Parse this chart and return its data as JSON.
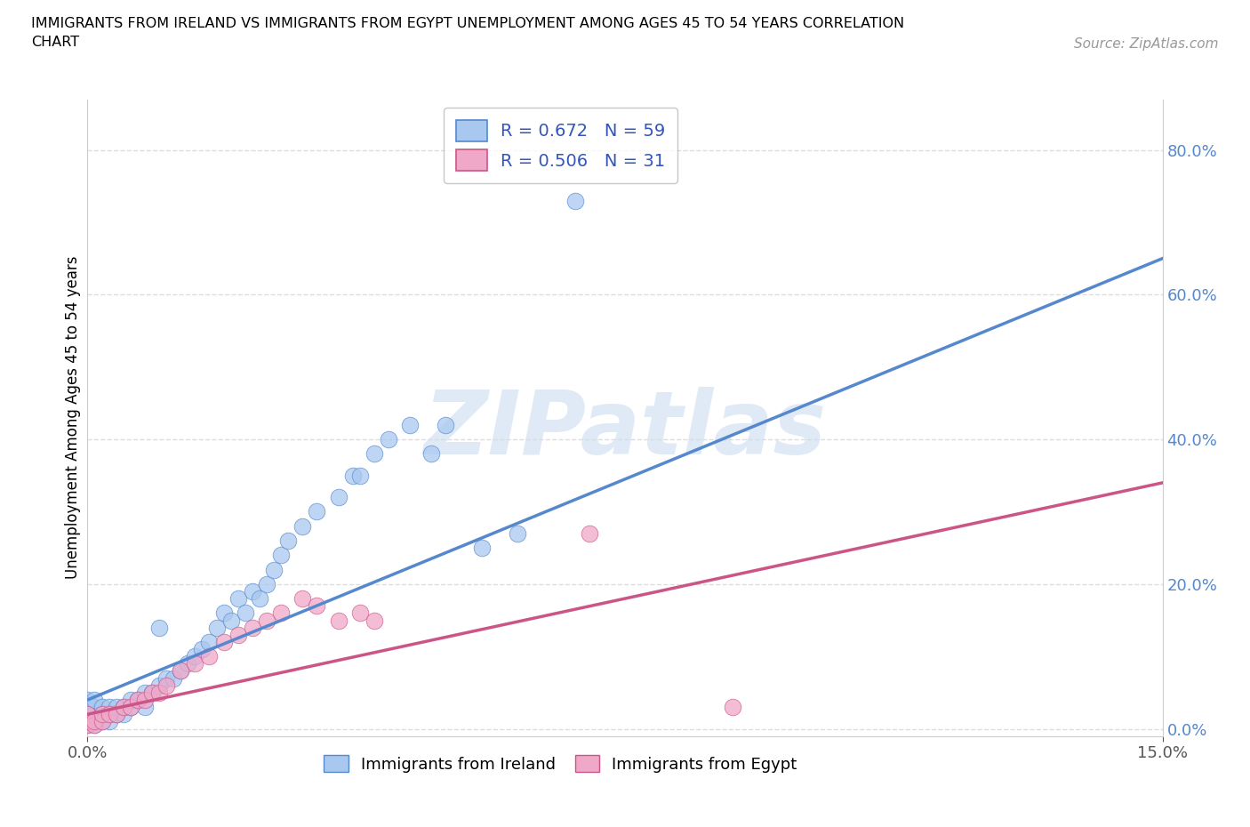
{
  "title_line1": "IMMIGRANTS FROM IRELAND VS IMMIGRANTS FROM EGYPT UNEMPLOYMENT AMONG AGES 45 TO 54 YEARS CORRELATION",
  "title_line2": "CHART",
  "source": "Source: ZipAtlas.com",
  "ylabel": "Unemployment Among Ages 45 to 54 years",
  "xlim": [
    0.0,
    0.15
  ],
  "ylim": [
    -0.01,
    0.87
  ],
  "ireland_R": 0.672,
  "ireland_N": 59,
  "egypt_R": 0.506,
  "egypt_N": 31,
  "ireland_color": "#a8c8f0",
  "egypt_color": "#f0a8c8",
  "ireland_line_color": "#5588cc",
  "egypt_line_color": "#cc5588",
  "legend_text_color": "#3355bb",
  "watermark_color": "#ccddf0",
  "background": "#ffffff",
  "grid_color": "#dddddd",
  "ytick_vals": [
    0.0,
    0.2,
    0.4,
    0.6,
    0.8
  ],
  "ytick_labels": [
    "0.0%",
    "20.0%",
    "40.0%",
    "60.0%",
    "80.0%"
  ],
  "xtick_vals": [
    0.0,
    0.15
  ],
  "xtick_labels": [
    "0.0%",
    "15.0%"
  ],
  "ireland_x": [
    0.0,
    0.0,
    0.0,
    0.0,
    0.0,
    0.001,
    0.001,
    0.001,
    0.001,
    0.001,
    0.002,
    0.002,
    0.002,
    0.003,
    0.003,
    0.003,
    0.004,
    0.004,
    0.005,
    0.005,
    0.006,
    0.006,
    0.007,
    0.008,
    0.008,
    0.009,
    0.01,
    0.01,
    0.011,
    0.012,
    0.013,
    0.014,
    0.015,
    0.016,
    0.017,
    0.018,
    0.019,
    0.02,
    0.021,
    0.022,
    0.023,
    0.024,
    0.025,
    0.026,
    0.027,
    0.028,
    0.03,
    0.032,
    0.035,
    0.037,
    0.038,
    0.04,
    0.042,
    0.045,
    0.048,
    0.05,
    0.055,
    0.06,
    0.068
  ],
  "ireland_y": [
    0.005,
    0.01,
    0.02,
    0.03,
    0.04,
    0.005,
    0.01,
    0.02,
    0.03,
    0.04,
    0.01,
    0.02,
    0.03,
    0.01,
    0.02,
    0.03,
    0.02,
    0.03,
    0.02,
    0.03,
    0.03,
    0.04,
    0.04,
    0.03,
    0.05,
    0.05,
    0.06,
    0.14,
    0.07,
    0.07,
    0.08,
    0.09,
    0.1,
    0.11,
    0.12,
    0.14,
    0.16,
    0.15,
    0.18,
    0.16,
    0.19,
    0.18,
    0.2,
    0.22,
    0.24,
    0.26,
    0.28,
    0.3,
    0.32,
    0.35,
    0.35,
    0.38,
    0.4,
    0.42,
    0.38,
    0.42,
    0.25,
    0.27,
    0.73
  ],
  "egypt_x": [
    0.0,
    0.0,
    0.0,
    0.001,
    0.001,
    0.002,
    0.002,
    0.003,
    0.004,
    0.005,
    0.006,
    0.007,
    0.008,
    0.009,
    0.01,
    0.011,
    0.013,
    0.015,
    0.017,
    0.019,
    0.021,
    0.023,
    0.025,
    0.027,
    0.03,
    0.032,
    0.035,
    0.038,
    0.04,
    0.07,
    0.09
  ],
  "egypt_y": [
    0.005,
    0.01,
    0.02,
    0.005,
    0.01,
    0.01,
    0.02,
    0.02,
    0.02,
    0.03,
    0.03,
    0.04,
    0.04,
    0.05,
    0.05,
    0.06,
    0.08,
    0.09,
    0.1,
    0.12,
    0.13,
    0.14,
    0.15,
    0.16,
    0.18,
    0.17,
    0.15,
    0.16,
    0.15,
    0.27,
    0.03
  ],
  "ireland_reg": [
    0.04,
    0.65
  ],
  "egypt_reg": [
    0.02,
    0.34
  ]
}
